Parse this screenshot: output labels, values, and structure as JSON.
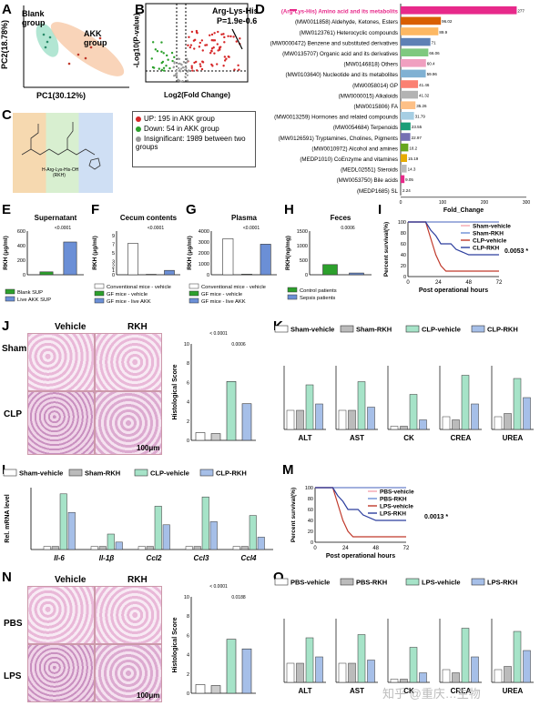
{
  "panels": {
    "A": "A",
    "B": "B",
    "C": "C",
    "D": "D",
    "E": "E",
    "F": "F",
    "G": "G",
    "H": "H",
    "I": "I",
    "J": "J",
    "K": "K",
    "L": "L",
    "M": "M",
    "N": "N",
    "O": "O"
  },
  "pca": {
    "xlabel": "PC1(30.12%)",
    "ylabel": "PC2(18.78%)",
    "blank": "Blank group",
    "akk": "AKK group"
  },
  "volcano": {
    "xlabel": "Log2(Fold Change)",
    "ylabel": "-Log10(P-value)",
    "annotation_name": "Arg-Lys-His",
    "annotation_stats": "P=1.9e-0.6",
    "legend": [
      "UP: 195 in AKK group",
      "Down: 54 in AKK group",
      "Insignificant: 1989 between two groups"
    ],
    "colors": {
      "up": "#d62728",
      "down": "#2ca02c",
      "insig": "#999999"
    }
  },
  "structure": {
    "caption1": "H-Arg-Lys-His-OH",
    "caption2": "(RKH)"
  },
  "chart_data": [
    {
      "type": "bar",
      "id": "D",
      "xlabel": "Fold_Change",
      "xlim": [
        0,
        300
      ],
      "ticks": [
        0,
        100,
        200,
        300
      ],
      "categories": [
        "(Arg-Lys-His) Amino acid and its metabolits",
        "(MW0011858) Aldehyde, Ketones, Esters",
        "(MW0123761) Heterocyclic compounds",
        "(MW0000472) Benzene and substituted derivatives",
        "(MW0135707) Organic acid and its derivatives",
        "(MW0146818) Others",
        "(MW0103640) Nucleotide and its metabolites",
        "(MW0058014) GP",
        "(MW0000015) Alkaloids",
        "(MW0015806) FA",
        "(MW0013259) Hormones and related compounds",
        "(MW0054684) Terpenoids",
        "(MW0126591) Tryptamines, Cholines, Pigments",
        "(MW0010972) Alcohol and amines",
        "(MEDP1010) CoEnzyme and vitamines",
        "(MEDL02551) Steroids",
        "(MW0053750) Bile acids",
        "(MEDP1685) SL"
      ],
      "values": [
        277,
        96.02,
        89.9,
        71,
        66.06,
        60.4,
        59.96,
        41.46,
        41.32,
        35.26,
        31.79,
        23.55,
        22.97,
        18.2,
        15.19,
        14.3,
        9.05,
        2.24
      ],
      "labels": [
        "277",
        "96.02",
        "89.9",
        "71",
        "66.06",
        "60.4",
        "59.96",
        "41.46",
        "41.32",
        "35.26",
        "31.79",
        "23.55",
        "22.97",
        "18.2",
        "15.19",
        "14.3",
        "9.05",
        "2.24"
      ],
      "colors": [
        "#e7298a",
        "#d95f02",
        "#fdb863",
        "#5e81b5",
        "#7fc97f",
        "#f0a0c0",
        "#80b1d3",
        "#fb8072",
        "#b3b3b3",
        "#fdc086",
        "#a6cee3",
        "#1b9e77",
        "#7570b3",
        "#66a61e",
        "#e6ab02",
        "#bbbbbb",
        "#e7298a",
        "#aaaaaa"
      ]
    },
    {
      "type": "bar",
      "id": "E",
      "title": "Supernatant",
      "ylabel": "RKH (μg/ml)",
      "ylim": [
        0,
        600
      ],
      "ticks": [
        0,
        200,
        400,
        600
      ],
      "values": [
        40,
        450
      ],
      "colors": [
        "#2ca02c",
        "#6b8fd6"
      ],
      "legend": [
        "Blank SUP",
        "Live AKK SUP"
      ],
      "sig": "<0.0001"
    },
    {
      "type": "bar",
      "id": "F",
      "title": "Cecum contents",
      "ylabel": "RKH (μg/ml)",
      "ylim": [
        0,
        10
      ],
      "ticks": [
        0,
        1,
        2,
        3,
        5,
        7,
        9
      ],
      "values": [
        7.2,
        0.1,
        1.0
      ],
      "colors": [
        "#ffffff",
        "#2ca02c",
        "#6b8fd6"
      ],
      "legend": [
        "Conventional mice - vehicle",
        "GF mice - vehicle",
        "GF mice - live AKK"
      ],
      "sig": "<0.0001"
    },
    {
      "type": "bar",
      "id": "G",
      "title": "Plasma",
      "ylabel": "RKH (μg/ml)",
      "ylim": [
        0,
        4000
      ],
      "ticks": [
        0,
        1000,
        2000,
        3000,
        4000
      ],
      "values": [
        3300,
        50,
        2800
      ],
      "colors": [
        "#ffffff",
        "#2ca02c",
        "#6b8fd6"
      ],
      "legend": [
        "Conventional mice - vehicle",
        "GF mice - vehicle",
        "GF mice - live AKK"
      ],
      "sig": "<0.0001"
    },
    {
      "type": "bar",
      "id": "H",
      "title": "Feces",
      "ylabel": "RKH(ng/mg)",
      "ylim": [
        0,
        1500
      ],
      "ticks": [
        0,
        500,
        1000,
        1500
      ],
      "values": [
        350,
        60
      ],
      "colors": [
        "#2ca02c",
        "#6b8fd6"
      ],
      "legend": [
        "Control patients",
        "Sepsis patients"
      ],
      "sig": "0.0006"
    },
    {
      "type": "line",
      "id": "I",
      "ylabel": "Percent survival(%)",
      "xlabel": "Post operational hours",
      "x": [
        0,
        24,
        48,
        72
      ],
      "ylim": [
        0,
        100
      ],
      "series": [
        {
          "name": "Sham-vehicle",
          "color": "#f4a6b0"
        },
        {
          "name": "Sham-RKH",
          "color": "#6b8fd6"
        },
        {
          "name": "CLP-vehicle",
          "color": "#c0392b"
        },
        {
          "name": "CLP-RKH",
          "color": "#2c3e9e"
        }
      ],
      "sig": "0.0053"
    },
    {
      "type": "bar",
      "id": "J",
      "ylabel": "Histological Score",
      "ylim": [
        0,
        10
      ],
      "ticks": [
        0,
        2,
        4,
        6,
        8,
        10
      ],
      "values": [
        0.8,
        0.7,
        6.1,
        3.8
      ],
      "sig": [
        "< 0.0001",
        "0.0006"
      ]
    },
    {
      "type": "bar",
      "id": "K",
      "series": [
        {
          "name": "Sham-vehicle"
        },
        {
          "name": "Sham-RKH"
        },
        {
          "name": "CLP-vehicle"
        },
        {
          "name": "CLP-RKH"
        }
      ],
      "categories": [
        "ALT",
        "AST",
        "CK",
        "CREA",
        "UREA"
      ]
    },
    {
      "type": "bar",
      "id": "L",
      "ylabel": "Rel. mRNA level",
      "series": [
        {
          "name": "Sham-vehicle"
        },
        {
          "name": "Sham-RKH"
        },
        {
          "name": "CLP-vehicle"
        },
        {
          "name": "CLP-RKH"
        }
      ],
      "categories": [
        "Il-6",
        "Il-1β",
        "Ccl2",
        "Ccl3",
        "Ccl4"
      ]
    },
    {
      "type": "line",
      "id": "M",
      "ylabel": "Percent survival(%)",
      "xlabel": "Post operational hours",
      "x": [
        0,
        24,
        48,
        72
      ],
      "series": [
        {
          "name": "PBS-vehicle"
        },
        {
          "name": "PBS-RKH"
        },
        {
          "name": "LPS-vehicle"
        },
        {
          "name": "LPS-RKH"
        }
      ],
      "sig": "0.0013"
    },
    {
      "type": "bar",
      "id": "N",
      "ylabel": "Histological Score",
      "values": [
        0.9,
        0.8,
        5.6,
        4.6
      ],
      "sig": [
        "< 0.0001",
        "0.0188"
      ]
    },
    {
      "type": "bar",
      "id": "O",
      "series": [
        {
          "name": "PBS-vehicle"
        },
        {
          "name": "PBS-RKH"
        },
        {
          "name": "LPS-vehicle"
        },
        {
          "name": "LPS-RKH"
        }
      ],
      "categories": [
        "ALT",
        "AST",
        "CK",
        "CREA",
        "UREA"
      ]
    }
  ],
  "histo": {
    "vehicle": "Vehicle",
    "rkh": "RKH",
    "sham": "Sham",
    "clp": "CLP",
    "pbs": "PBS",
    "lps": "LPS",
    "scale": "100μm"
  },
  "watermark": "知乎 @重庆…生物"
}
